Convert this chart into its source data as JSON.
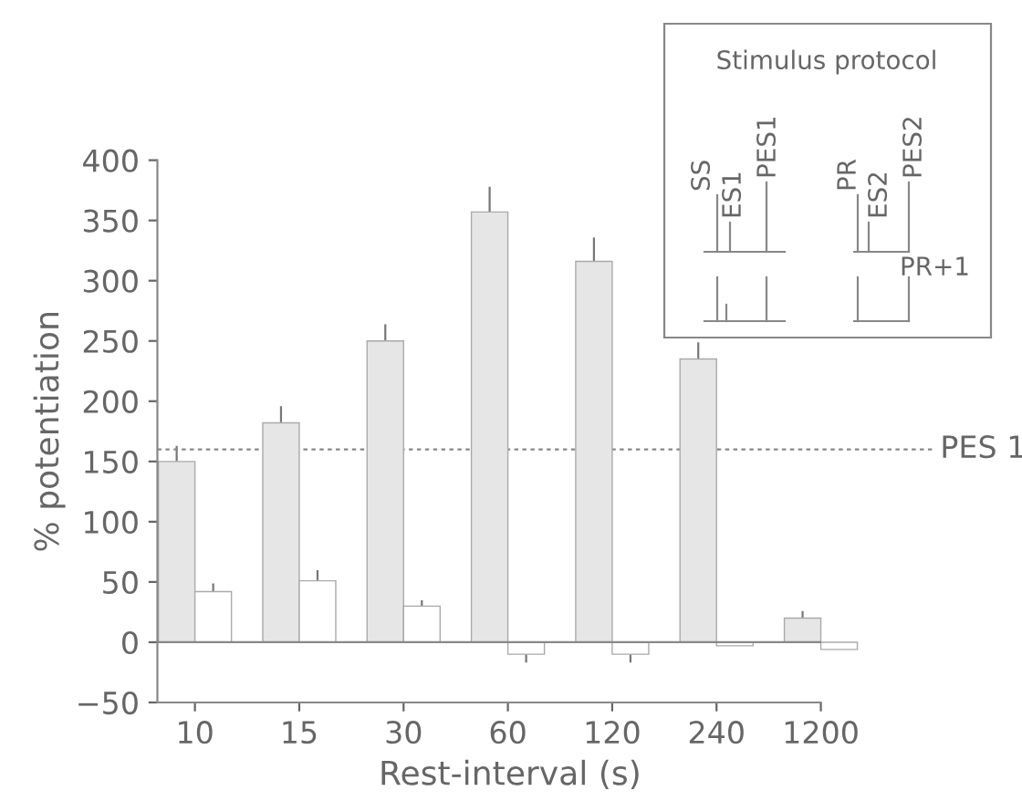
{
  "chart_data": {
    "type": "bar",
    "xlabel": "Rest-interval (s)",
    "ylabel": "% potentiation",
    "categories": [
      "10",
      "15",
      "30",
      "60",
      "120",
      "240",
      "1200"
    ],
    "series": [
      {
        "color": "#e6e6e6",
        "values": [
          150,
          182,
          250,
          357,
          316,
          235,
          20
        ],
        "errors": [
          [
            150,
            162
          ],
          [
            182,
            195
          ],
          [
            250,
            263
          ],
          [
            357,
            377
          ],
          [
            316,
            335
          ],
          [
            235,
            248
          ],
          [
            20,
            25
          ]
        ]
      },
      {
        "color": "#ffffff",
        "values": [
          42,
          51,
          30,
          -10,
          -10,
          -3,
          -6
        ],
        "errors": [
          [
            42,
            48
          ],
          [
            51,
            59
          ],
          [
            30,
            34
          ],
          [
            -16,
            -10
          ],
          [
            -16,
            -10
          ],
          null,
          null
        ]
      }
    ],
    "ylim": [
      -50,
      400
    ],
    "yticks": [
      {
        "value": -50,
        "label": "−50"
      },
      0,
      50,
      100,
      150,
      200,
      250,
      300,
      350,
      400
    ],
    "ref_lines": [
      {
        "axis": "y",
        "value": 0,
        "line_style": "solid"
      },
      {
        "axis": "y",
        "value": 160,
        "label": "PES 1",
        "line_style": "dotted"
      }
    ],
    "annotations": [
      "Stimulus protocol",
      "SS",
      "ES1",
      "PES1",
      "PR",
      "ES2",
      "PES2",
      "PR+1"
    ],
    "grid": false,
    "legend": false
  }
}
